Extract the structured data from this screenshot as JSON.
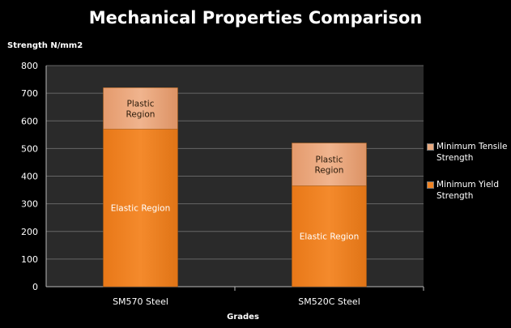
{
  "chart_data": {
    "type": "bar",
    "stacked": true,
    "title": "Mechanical Properties Comparison",
    "ylabel": "Strength N/mm2",
    "xlabel": "Grades",
    "categories": [
      "SM570 Steel",
      "SM520C Steel"
    ],
    "ylim": [
      0,
      800
    ],
    "yticks": [
      0,
      100,
      200,
      300,
      400,
      500,
      600,
      700,
      800
    ],
    "series": [
      {
        "name": "Minimum Yield Strength",
        "values": [
          570,
          365
        ],
        "labels": [
          "Elastic Region",
          "Elastic Region"
        ],
        "color": "#f08424"
      },
      {
        "name": "Minimum Tensile Strength",
        "values": [
          150,
          155
        ],
        "labels": [
          "Plastic Region",
          "Plastic Region"
        ],
        "color": "#e9aa80"
      }
    ],
    "grid": true,
    "legend_position": "right"
  },
  "colors": {
    "background": "#000000",
    "plot_background": "#2a2a2a",
    "grid": "#666666"
  }
}
